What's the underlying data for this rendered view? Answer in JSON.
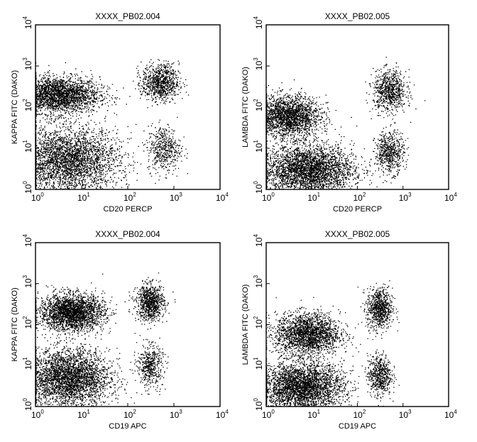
{
  "chart_data": [
    {
      "type": "scatter",
      "title": "XXXX_PB02.004",
      "xlabel": "CD20 PERCP",
      "ylabel": "KAPPA FITC (DAKO)",
      "xscale": "log",
      "yscale": "log",
      "xlim": [
        1,
        10000
      ],
      "ylim": [
        1,
        10000
      ],
      "ticks": [
        "1",
        "10",
        "100",
        "1000",
        "10000"
      ],
      "grid": false,
      "populations": [
        {
          "cx": 3,
          "cy": 200,
          "sx": 0.45,
          "sy": 0.22,
          "n": 2600
        },
        {
          "cx": 5,
          "cy": 5,
          "sx": 0.55,
          "sy": 0.4,
          "n": 3400
        },
        {
          "cx": 500,
          "cy": 400,
          "sx": 0.2,
          "sy": 0.22,
          "n": 900
        },
        {
          "cx": 600,
          "cy": 10,
          "sx": 0.18,
          "sy": 0.28,
          "n": 500
        }
      ]
    },
    {
      "type": "scatter",
      "title": "XXXX_PB02.005",
      "xlabel": "CD20 PERCP",
      "ylabel": "LAMBDA FITC (DAKO)",
      "xscale": "log",
      "yscale": "log",
      "xlim": [
        1,
        10000
      ],
      "ylim": [
        1,
        10000
      ],
      "ticks": [
        "1",
        "10",
        "100",
        "1000",
        "10000"
      ],
      "grid": false,
      "populations": [
        {
          "cx": 3,
          "cy": 60,
          "sx": 0.35,
          "sy": 0.25,
          "n": 2200
        },
        {
          "cx": 8,
          "cy": 3,
          "sx": 0.5,
          "sy": 0.3,
          "n": 3400
        },
        {
          "cx": 500,
          "cy": 250,
          "sx": 0.18,
          "sy": 0.25,
          "n": 800
        },
        {
          "cx": 500,
          "cy": 8,
          "sx": 0.16,
          "sy": 0.25,
          "n": 600
        }
      ]
    },
    {
      "type": "scatter",
      "title": "XXXX_PB02.004",
      "xlabel": "CD19 APC",
      "ylabel": "KAPPA FITC (DAKO)",
      "xscale": "log",
      "yscale": "log",
      "xlim": [
        1,
        10000
      ],
      "ylim": [
        1,
        10000
      ],
      "ticks": [
        "1",
        "10",
        "100",
        "1000",
        "10000"
      ],
      "grid": false,
      "populations": [
        {
          "cx": 6,
          "cy": 200,
          "sx": 0.35,
          "sy": 0.22,
          "n": 2600
        },
        {
          "cx": 5,
          "cy": 5,
          "sx": 0.45,
          "sy": 0.35,
          "n": 3400
        },
        {
          "cx": 300,
          "cy": 350,
          "sx": 0.15,
          "sy": 0.22,
          "n": 900
        },
        {
          "cx": 300,
          "cy": 10,
          "sx": 0.14,
          "sy": 0.25,
          "n": 500
        }
      ]
    },
    {
      "type": "scatter",
      "title": "XXXX_PB02.005",
      "xlabel": "CD19 APC",
      "ylabel": "LAMBDA FITC (DAKO)",
      "xscale": "log",
      "yscale": "log",
      "xlim": [
        1,
        10000
      ],
      "ylim": [
        1,
        10000
      ],
      "ticks": [
        "1",
        "10",
        "100",
        "1000",
        "10000"
      ],
      "grid": false,
      "populations": [
        {
          "cx": 8,
          "cy": 60,
          "sx": 0.35,
          "sy": 0.25,
          "n": 2200
        },
        {
          "cx": 6,
          "cy": 3,
          "sx": 0.45,
          "sy": 0.3,
          "n": 3400
        },
        {
          "cx": 300,
          "cy": 250,
          "sx": 0.14,
          "sy": 0.25,
          "n": 800
        },
        {
          "cx": 300,
          "cy": 6,
          "sx": 0.13,
          "sy": 0.25,
          "n": 600
        }
      ]
    }
  ]
}
